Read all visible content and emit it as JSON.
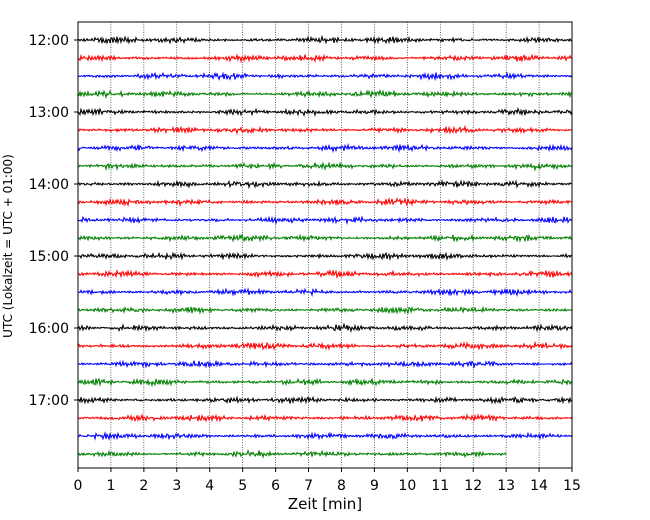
{
  "chart_data": {
    "type": "line",
    "title": "",
    "xlabel": "Zeit  [min]",
    "ylabel": "UTC (Lokalzeit = UTC + 01:00)",
    "xlim": [
      0,
      15
    ],
    "x_ticks": [
      "0",
      "1",
      "2",
      "3",
      "4",
      "5",
      "6",
      "7",
      "8",
      "9",
      "10",
      "11",
      "12",
      "13",
      "14",
      "15"
    ],
    "y_ticks": [
      "12:00",
      "13:00",
      "14:00",
      "15:00",
      "16:00",
      "17:00"
    ],
    "grid": "vertical dotted",
    "legend": "none",
    "colors": [
      "#000000",
      "#ff0000",
      "#0000ff",
      "#008000"
    ],
    "rows": [
      {
        "start": "12:00",
        "end_min": 15,
        "color": "#000000"
      },
      {
        "start": "12:15",
        "end_min": 15,
        "color": "#ff0000"
      },
      {
        "start": "12:30",
        "end_min": 15,
        "color": "#0000ff"
      },
      {
        "start": "12:45",
        "end_min": 15,
        "color": "#008000"
      },
      {
        "start": "13:00",
        "end_min": 15,
        "color": "#000000"
      },
      {
        "start": "13:15",
        "end_min": 15,
        "color": "#ff0000"
      },
      {
        "start": "13:30",
        "end_min": 15,
        "color": "#0000ff"
      },
      {
        "start": "13:45",
        "end_min": 15,
        "color": "#008000"
      },
      {
        "start": "14:00",
        "end_min": 15,
        "color": "#000000"
      },
      {
        "start": "14:15",
        "end_min": 15,
        "color": "#ff0000"
      },
      {
        "start": "14:30",
        "end_min": 15,
        "color": "#0000ff"
      },
      {
        "start": "14:45",
        "end_min": 15,
        "color": "#008000"
      },
      {
        "start": "15:00",
        "end_min": 15,
        "color": "#000000"
      },
      {
        "start": "15:15",
        "end_min": 15,
        "color": "#ff0000"
      },
      {
        "start": "15:30",
        "end_min": 15,
        "color": "#0000ff"
      },
      {
        "start": "15:45",
        "end_min": 15,
        "color": "#008000"
      },
      {
        "start": "16:00",
        "end_min": 15,
        "color": "#000000"
      },
      {
        "start": "16:15",
        "end_min": 15,
        "color": "#ff0000"
      },
      {
        "start": "16:30",
        "end_min": 15,
        "color": "#0000ff"
      },
      {
        "start": "16:45",
        "end_min": 15,
        "color": "#008000"
      },
      {
        "start": "17:00",
        "end_min": 15,
        "color": "#000000"
      },
      {
        "start": "17:15",
        "end_min": 15,
        "color": "#ff0000"
      },
      {
        "start": "17:30",
        "end_min": 15,
        "color": "#0000ff"
      },
      {
        "start": "17:45",
        "end_min": 13,
        "color": "#008000"
      }
    ]
  }
}
